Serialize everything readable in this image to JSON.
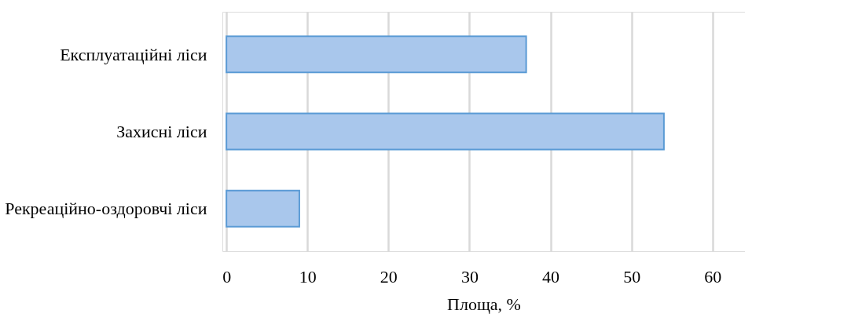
{
  "chart_data": {
    "type": "bar",
    "orientation": "horizontal",
    "categories": [
      "Експлуатаційні ліси",
      "Захисні ліси",
      "Рекреаційно-оздоровчі ліси"
    ],
    "values": [
      37,
      54,
      9
    ],
    "color": "#a9c7ec",
    "xlabel": "Площа, %",
    "xlim": [
      -0.5,
      64
    ],
    "xticks": [
      0,
      10,
      20,
      30,
      40,
      50,
      60
    ],
    "grid": "x"
  }
}
